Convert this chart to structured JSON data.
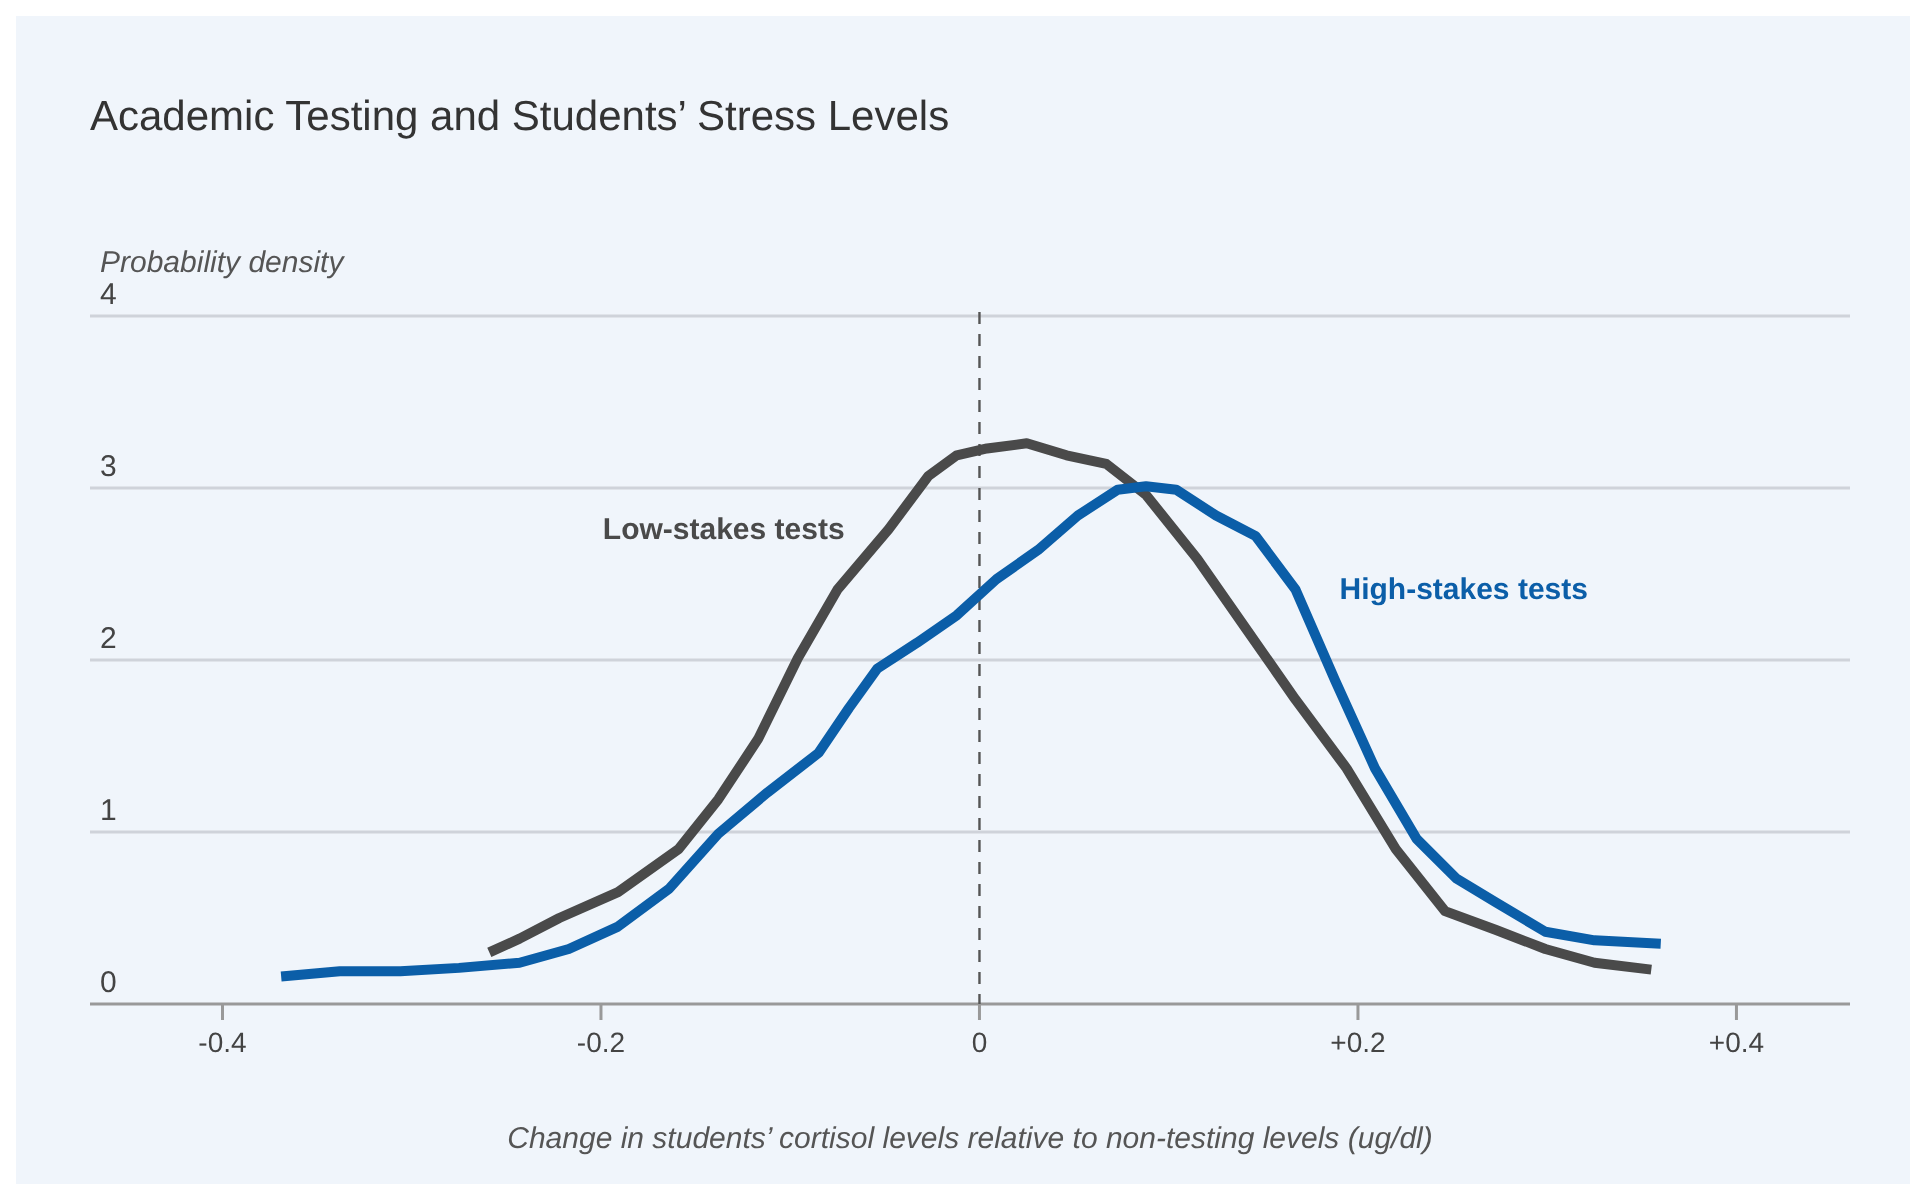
{
  "chart_data": {
    "type": "line",
    "title": "Academic Testing and Students’ Stress Levels",
    "ylabel": "Probability density",
    "xlabel": "Change in students’ cortisol levels relative to non-testing levels (ug/dl)",
    "xlim": [
      -0.47,
      0.46
    ],
    "ylim": [
      0,
      4
    ],
    "xticks": [
      {
        "value": -0.4,
        "label": "-0.4"
      },
      {
        "value": -0.2,
        "label": "-0.2"
      },
      0,
      {
        "value": 0.2,
        "label": "+0.2"
      },
      {
        "value": 0.4,
        "label": "+0.4"
      }
    ],
    "yticks": [
      0,
      1,
      2,
      3,
      4
    ],
    "grid": "y",
    "marker": "none",
    "line_style": "solid",
    "ref_lines": [
      {
        "axis": "x",
        "value": 0,
        "line_style": "dashed",
        "color": "#555555"
      }
    ],
    "series": [
      {
        "name": "Low-stakes tests",
        "color": "#4a4a4a",
        "x": [
          -0.259,
          -0.243,
          -0.222,
          -0.191,
          -0.159,
          -0.138,
          -0.117,
          -0.096,
          -0.075,
          -0.048,
          -0.027,
          -0.012,
          0.004,
          0.025,
          0.046,
          0.067,
          0.088,
          0.115,
          0.141,
          0.167,
          0.194,
          0.22,
          0.246,
          0.273,
          0.299,
          0.325,
          0.355
        ],
        "values": [
          0.3,
          0.38,
          0.5,
          0.65,
          0.9,
          1.19,
          1.54,
          2.01,
          2.41,
          2.76,
          3.07,
          3.19,
          3.23,
          3.26,
          3.19,
          3.14,
          2.96,
          2.59,
          2.18,
          1.77,
          1.37,
          0.9,
          0.54,
          0.43,
          0.32,
          0.24,
          0.2
        ]
      },
      {
        "name": "High-stakes tests",
        "color": "#0b5ea8",
        "x": [
          -0.369,
          -0.338,
          -0.306,
          -0.275,
          -0.243,
          -0.217,
          -0.191,
          -0.164,
          -0.138,
          -0.112,
          -0.085,
          -0.069,
          -0.054,
          -0.033,
          -0.012,
          0.009,
          0.031,
          0.052,
          0.073,
          0.088,
          0.104,
          0.125,
          0.146,
          0.167,
          0.188,
          0.209,
          0.231,
          0.252,
          0.273,
          0.299,
          0.325,
          0.36
        ],
        "values": [
          0.16,
          0.19,
          0.19,
          0.21,
          0.24,
          0.32,
          0.45,
          0.67,
          0.99,
          1.23,
          1.46,
          1.72,
          1.95,
          2.1,
          2.26,
          2.47,
          2.64,
          2.84,
          2.99,
          3.01,
          2.99,
          2.84,
          2.72,
          2.41,
          1.88,
          1.37,
          0.96,
          0.73,
          0.59,
          0.42,
          0.37,
          0.35
        ]
      }
    ]
  }
}
